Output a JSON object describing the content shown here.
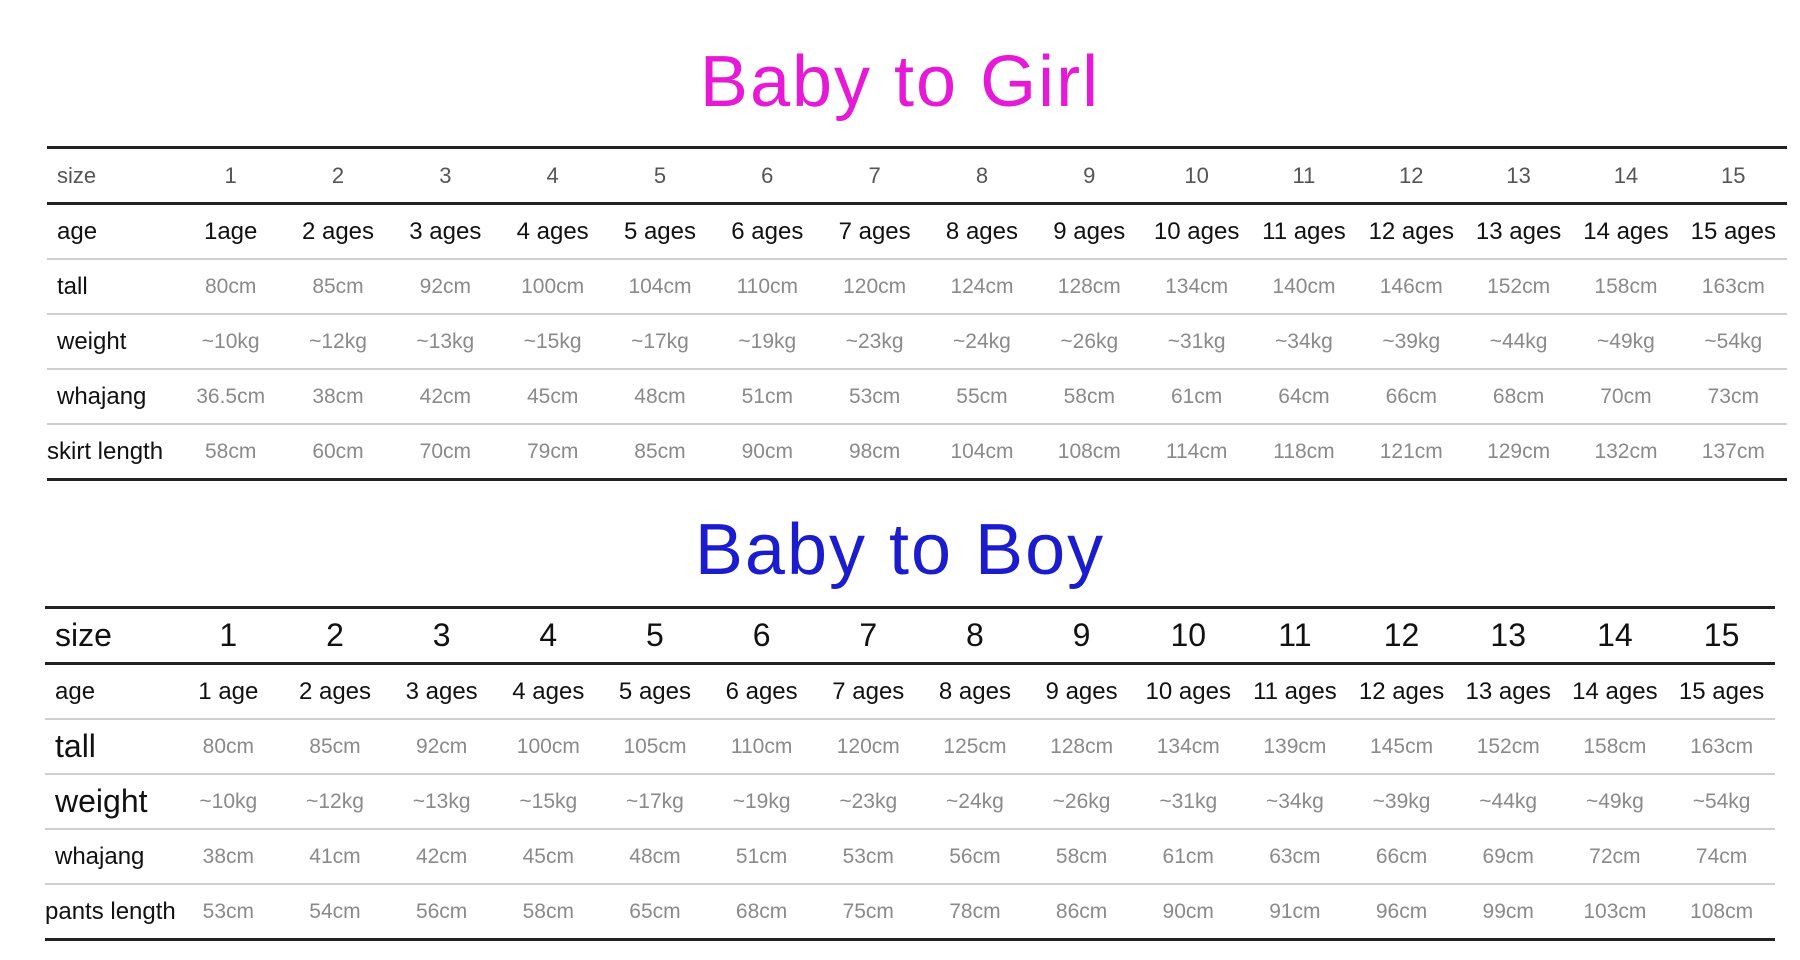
{
  "girl": {
    "title": "Baby to Girl",
    "title_color": "#e619d6",
    "rows": [
      {
        "label": "size",
        "values": [
          "1",
          "2",
          "3",
          "4",
          "5",
          "6",
          "7",
          "8",
          "9",
          "10",
          "11",
          "12",
          "13",
          "14",
          "15"
        ]
      },
      {
        "label": "age",
        "values": [
          "1age",
          "2 ages",
          "3 ages",
          "4 ages",
          "5 ages",
          "6 ages",
          "7 ages",
          "8 ages",
          "9 ages",
          "10 ages",
          "11 ages",
          "12 ages",
          "13 ages",
          "14 ages",
          "15 ages"
        ]
      },
      {
        "label": "tall",
        "values": [
          "80cm",
          "85cm",
          "92cm",
          "100cm",
          "104cm",
          "110cm",
          "120cm",
          "124cm",
          "128cm",
          "134cm",
          "140cm",
          "146cm",
          "152cm",
          "158cm",
          "163cm"
        ]
      },
      {
        "label": "weight",
        "values": [
          "~10kg",
          "~12kg",
          "~13kg",
          "~15kg",
          "~17kg",
          "~19kg",
          "~23kg",
          "~24kg",
          "~26kg",
          "~31kg",
          "~34kg",
          "~39kg",
          "~44kg",
          "~49kg",
          "~54kg"
        ]
      },
      {
        "label": "whajang",
        "values": [
          "36.5cm",
          "38cm",
          "42cm",
          "45cm",
          "48cm",
          "51cm",
          "53cm",
          "55cm",
          "58cm",
          "61cm",
          "64cm",
          "66cm",
          "68cm",
          "70cm",
          "73cm"
        ]
      },
      {
        "label": "skirt length",
        "values": [
          "58cm",
          "60cm",
          "70cm",
          "79cm",
          "85cm",
          "90cm",
          "98cm",
          "104cm",
          "108cm",
          "114cm",
          "118cm",
          "121cm",
          "129cm",
          "132cm",
          "137cm"
        ]
      }
    ]
  },
  "boy": {
    "title": "Baby to Boy",
    "title_color": "#1c1ccf",
    "rows": [
      {
        "label": "size",
        "values": [
          "1",
          "2",
          "3",
          "4",
          "5",
          "6",
          "7",
          "8",
          "9",
          "10",
          "11",
          "12",
          "13",
          "14",
          "15"
        ]
      },
      {
        "label": "age",
        "values": [
          "1 age",
          "2 ages",
          "3 ages",
          "4 ages",
          "5 ages",
          "6 ages",
          "7 ages",
          "8 ages",
          "9 ages",
          "10 ages",
          "11 ages",
          "12 ages",
          "13 ages",
          "14 ages",
          "15 ages"
        ]
      },
      {
        "label": "tall",
        "values": [
          "80cm",
          "85cm",
          "92cm",
          "100cm",
          "105cm",
          "110cm",
          "120cm",
          "125cm",
          "128cm",
          "134cm",
          "139cm",
          "145cm",
          "152cm",
          "158cm",
          "163cm"
        ]
      },
      {
        "label": "weight",
        "values": [
          "~10kg",
          "~12kg",
          "~13kg",
          "~15kg",
          "~17kg",
          "~19kg",
          "~23kg",
          "~24kg",
          "~26kg",
          "~31kg",
          "~34kg",
          "~39kg",
          "~44kg",
          "~49kg",
          "~54kg"
        ]
      },
      {
        "label": "whajang",
        "values": [
          "38cm",
          "41cm",
          "42cm",
          "45cm",
          "48cm",
          "51cm",
          "53cm",
          "56cm",
          "58cm",
          "61cm",
          "63cm",
          "66cm",
          "69cm",
          "72cm",
          "74cm"
        ]
      },
      {
        "label": "pants length",
        "values": [
          "53cm",
          "54cm",
          "56cm",
          "58cm",
          "65cm",
          "68cm",
          "75cm",
          "78cm",
          "86cm",
          "90cm",
          "91cm",
          "96cm",
          "99cm",
          "103cm",
          "108cm"
        ]
      }
    ]
  }
}
